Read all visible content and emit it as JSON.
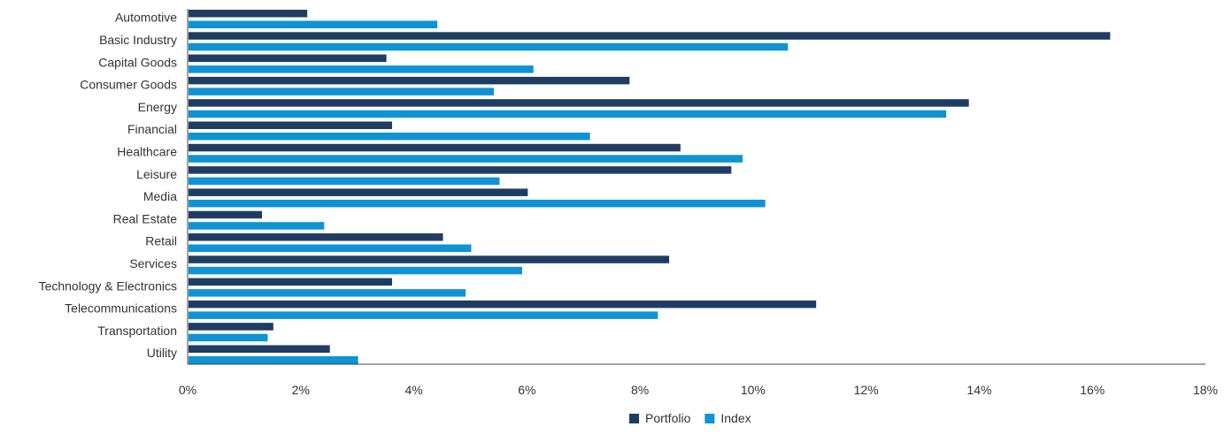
{
  "chart_data": {
    "type": "bar",
    "orientation": "horizontal",
    "categories": [
      "Automotive",
      "Basic Industry",
      "Capital Goods",
      "Consumer Goods",
      "Energy",
      "Financial",
      "Healthcare",
      "Leisure",
      "Media",
      "Real Estate",
      "Retail",
      "Services",
      "Technology & Electronics",
      "Telecommunications",
      "Transportation",
      "Utility"
    ],
    "series": [
      {
        "name": "Portfolio",
        "color": "#1f3d63",
        "values": [
          2.1,
          16.3,
          3.5,
          7.8,
          13.8,
          3.6,
          8.7,
          9.6,
          6.0,
          1.3,
          4.5,
          8.5,
          3.6,
          11.1,
          1.5,
          2.5
        ]
      },
      {
        "name": "Index",
        "color": "#0e93d5",
        "values": [
          4.4,
          10.6,
          6.1,
          5.4,
          13.4,
          7.1,
          9.8,
          5.5,
          10.2,
          2.4,
          5.0,
          5.9,
          4.9,
          8.3,
          1.4,
          3.0
        ]
      }
    ],
    "xlim": [
      0,
      18
    ],
    "xticks": [
      "0%",
      "2%",
      "4%",
      "6%",
      "8%",
      "10%",
      "12%",
      "14%",
      "16%",
      "18%"
    ],
    "xtick_values": [
      0,
      2,
      4,
      6,
      8,
      10,
      12,
      14,
      16,
      18
    ],
    "legend_position": "bottom-center",
    "grid": false
  }
}
